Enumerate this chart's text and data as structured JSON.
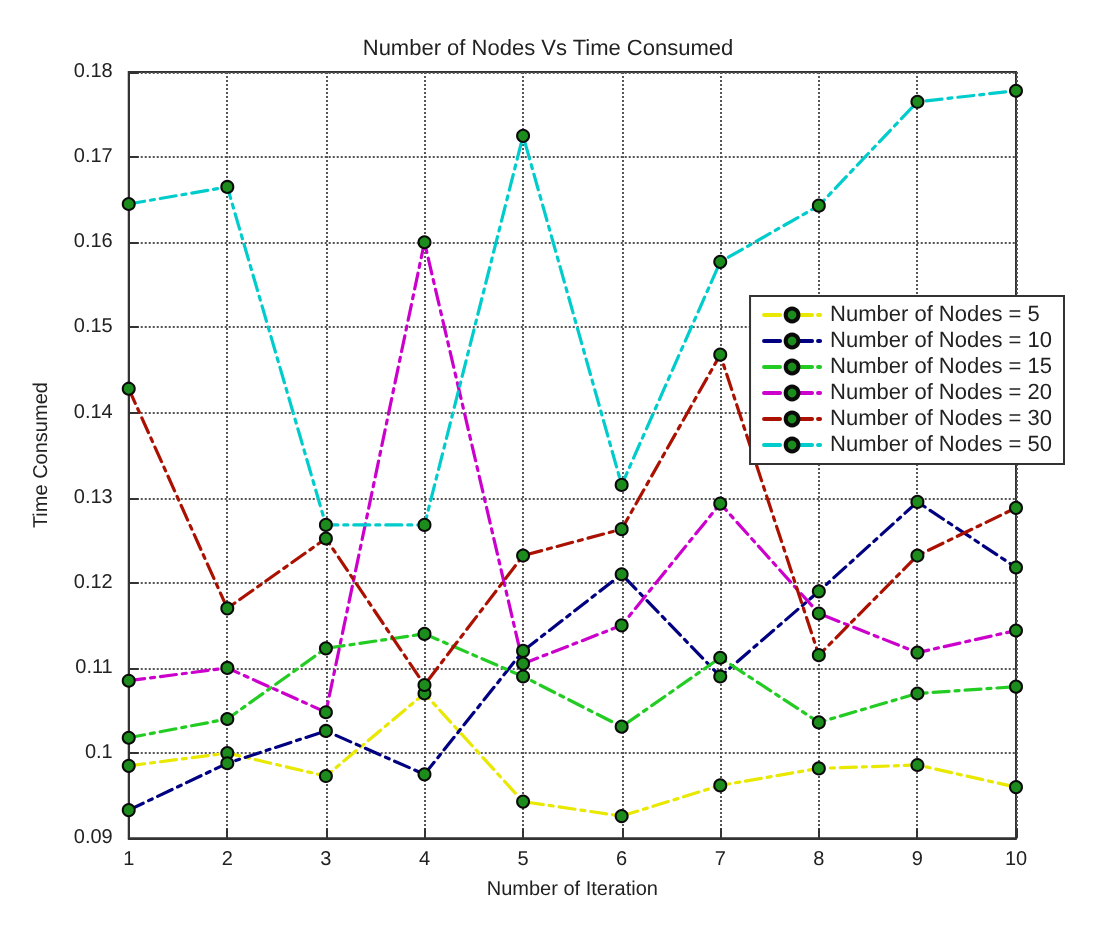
{
  "chart_data": {
    "type": "line",
    "title": "Number of Nodes Vs Time Consumed",
    "xlabel": "Number of Iteration",
    "ylabel": "Time Consumed",
    "x": [
      1,
      2,
      3,
      4,
      5,
      6,
      7,
      8,
      9,
      10
    ],
    "series": [
      {
        "name": "Number of Nodes = 5",
        "color": "#e8e800",
        "values": [
          0.0985,
          0.1,
          0.0973,
          0.107,
          0.0943,
          0.0926,
          0.0962,
          0.0982,
          0.0986,
          0.096
        ]
      },
      {
        "name": "Number of Nodes = 10",
        "color": "#000080",
        "values": [
          0.0933,
          0.0988,
          0.1026,
          0.0975,
          0.112,
          0.121,
          0.109,
          0.119,
          0.1295,
          0.1218
        ]
      },
      {
        "name": "Number of Nodes = 15",
        "color": "#22cc22",
        "values": [
          0.1018,
          0.104,
          0.1123,
          0.114,
          0.109,
          0.1031,
          0.1112,
          0.1036,
          0.107,
          0.1078
        ]
      },
      {
        "name": "Number of Nodes = 20",
        "color": "#cc00cc",
        "values": [
          0.1085,
          0.11,
          0.1048,
          0.16,
          0.1105,
          0.115,
          0.1293,
          0.1164,
          0.1118,
          0.1144
        ]
      },
      {
        "name": "Number of Nodes = 30",
        "color": "#aa1100",
        "values": [
          0.1428,
          0.117,
          0.1252,
          0.108,
          0.1232,
          0.1263,
          0.1468,
          0.1115,
          0.1232,
          0.1288
        ]
      },
      {
        "name": "Number of Nodes = 50",
        "color": "#00cccc",
        "values": [
          0.1645,
          0.1665,
          0.1268,
          0.1268,
          0.1725,
          0.1315,
          0.1577,
          0.1643,
          0.1765,
          0.1778
        ]
      }
    ],
    "xlim": [
      1,
      10
    ],
    "xticks": [
      1,
      2,
      3,
      4,
      5,
      6,
      7,
      8,
      9,
      10
    ],
    "ylim": [
      0.09,
      0.18
    ],
    "yticks": [
      0.09,
      0.1,
      0.11,
      0.12,
      0.13,
      0.14,
      0.15,
      0.16,
      0.17,
      0.18
    ],
    "grid": true,
    "legend": "right",
    "marker": "circle",
    "line_style": "dashed"
  }
}
